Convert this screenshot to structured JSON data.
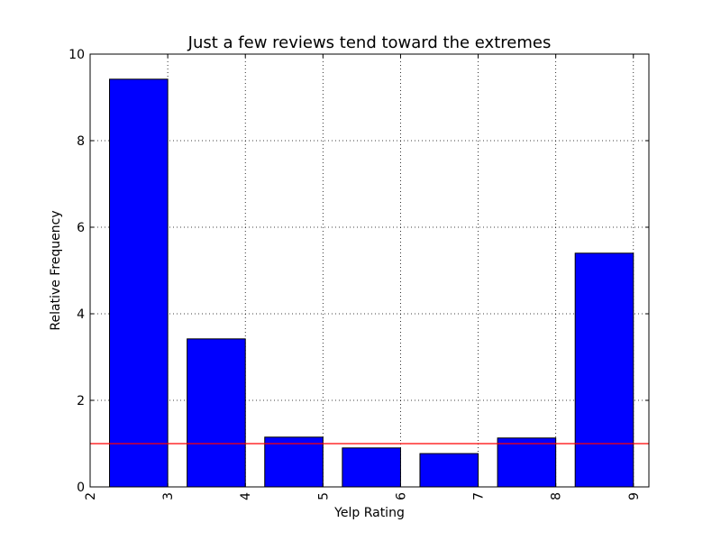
{
  "chart_data": {
    "type": "bar",
    "title": "Just a few reviews tend toward the extremes",
    "xlabel": "Yelp Rating",
    "ylabel": "Relative Frequency",
    "xlim": [
      2,
      9.2
    ],
    "ylim": [
      0,
      10
    ],
    "x_ticks": [
      "2",
      "3",
      "4",
      "5",
      "6",
      "7",
      "8",
      "9"
    ],
    "y_ticks": [
      "0",
      "2",
      "4",
      "6",
      "8",
      "10"
    ],
    "grid": true,
    "bar_color": "#0000ff",
    "bar_edge_color": "#000000",
    "bars": [
      {
        "x_start": 2.25,
        "x_end": 3.0,
        "value": 9.42
      },
      {
        "x_start": 3.25,
        "x_end": 4.0,
        "value": 3.42
      },
      {
        "x_start": 4.25,
        "x_end": 5.0,
        "value": 1.15
      },
      {
        "x_start": 5.25,
        "x_end": 6.0,
        "value": 0.9
      },
      {
        "x_start": 6.25,
        "x_end": 7.0,
        "value": 0.77
      },
      {
        "x_start": 7.25,
        "x_end": 8.0,
        "value": 1.13
      },
      {
        "x_start": 8.25,
        "x_end": 9.0,
        "value": 5.4
      }
    ],
    "reference_line": {
      "y": 1.0,
      "color": "#ff0000"
    }
  }
}
